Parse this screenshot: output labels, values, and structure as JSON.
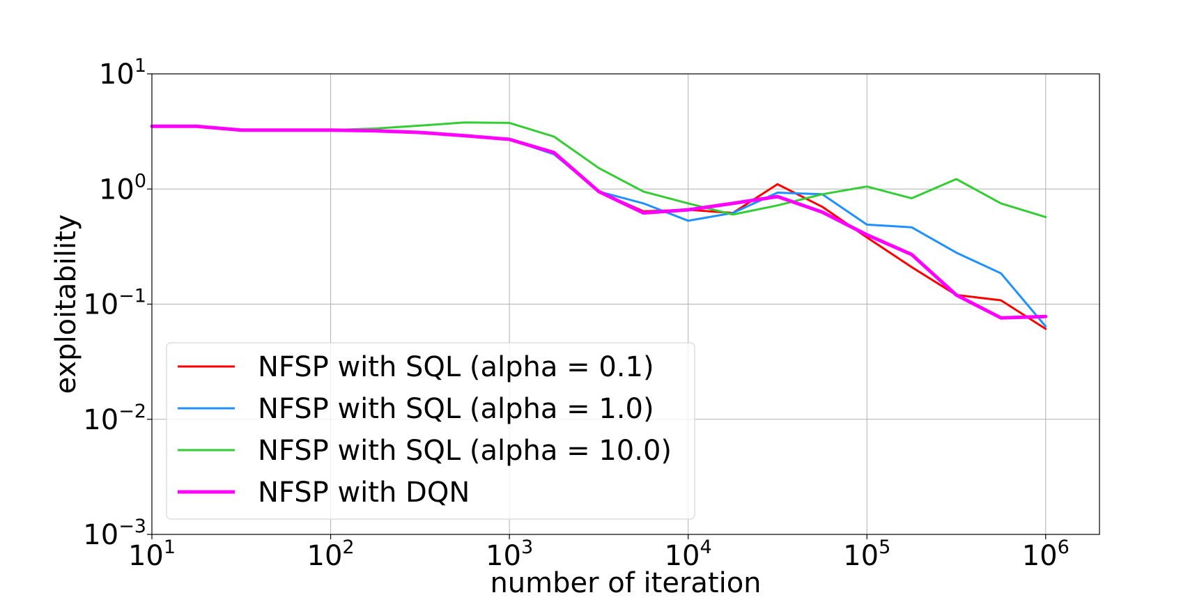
{
  "chart_data": {
    "type": "line",
    "xscale": "log",
    "yscale": "log",
    "xlabel": "number of iteration",
    "ylabel": "exploitability",
    "xlim": [
      10,
      2000000
    ],
    "ylim": [
      0.001,
      10
    ],
    "grid": true,
    "legend_position": "lower-left",
    "x_ticks": [
      {
        "base": "10",
        "exp": "1",
        "value": 10
      },
      {
        "base": "10",
        "exp": "2",
        "value": 100
      },
      {
        "base": "10",
        "exp": "3",
        "value": 1000
      },
      {
        "base": "10",
        "exp": "4",
        "value": 10000
      },
      {
        "base": "10",
        "exp": "5",
        "value": 100000
      },
      {
        "base": "10",
        "exp": "6",
        "value": 1000000
      }
    ],
    "y_ticks": [
      {
        "base": "10",
        "exp": "1",
        "value": 10
      },
      {
        "base": "10",
        "exp": "0",
        "value": 1
      },
      {
        "base": "10",
        "exp": "−1",
        "value": 0.1
      },
      {
        "base": "10",
        "exp": "−2",
        "value": 0.01
      },
      {
        "base": "10",
        "exp": "−3",
        "value": 0.001
      }
    ],
    "x": [
      10,
      17.8,
      31.6,
      56.2,
      100,
      177.8,
      316.2,
      562.3,
      1000,
      1778,
      3162,
      5623,
      10000,
      17783,
      31623,
      56234,
      100000,
      177828,
      316228,
      562341,
      1000000
    ],
    "series": [
      {
        "name": "NFSP with SQL (alpha = 0.1)",
        "color": "#ff0000",
        "line_width": 3,
        "values": [
          3.5,
          3.5,
          3.25,
          3.25,
          3.25,
          3.2,
          3.1,
          2.9,
          2.7,
          2.1,
          0.95,
          0.64,
          0.66,
          0.62,
          1.1,
          0.7,
          0.38,
          0.21,
          0.12,
          0.108,
          0.061
        ]
      },
      {
        "name": "NFSP with SQL (alpha = 1.0)",
        "color": "#1e90ff",
        "line_width": 3,
        "values": [
          3.5,
          3.5,
          3.25,
          3.25,
          3.25,
          3.2,
          3.1,
          2.9,
          2.7,
          2.0,
          0.95,
          0.75,
          0.53,
          0.62,
          0.93,
          0.9,
          0.49,
          0.465,
          0.28,
          0.185,
          0.064
        ]
      },
      {
        "name": "NFSP with SQL (alpha = 10.0)",
        "color": "#32cd32",
        "line_width": 3,
        "values": [
          3.5,
          3.5,
          3.25,
          3.25,
          3.25,
          3.35,
          3.55,
          3.78,
          3.75,
          2.85,
          1.52,
          0.95,
          0.75,
          0.6,
          0.72,
          0.9,
          1.05,
          0.83,
          1.22,
          0.75,
          0.57
        ]
      },
      {
        "name": "NFSP with DQN",
        "color": "#ff00ff",
        "line_width": 5,
        "values": [
          3.5,
          3.5,
          3.25,
          3.25,
          3.25,
          3.2,
          3.1,
          2.9,
          2.7,
          2.07,
          0.95,
          0.62,
          0.66,
          0.75,
          0.86,
          0.63,
          0.4,
          0.27,
          0.12,
          0.076,
          0.078
        ]
      }
    ]
  }
}
